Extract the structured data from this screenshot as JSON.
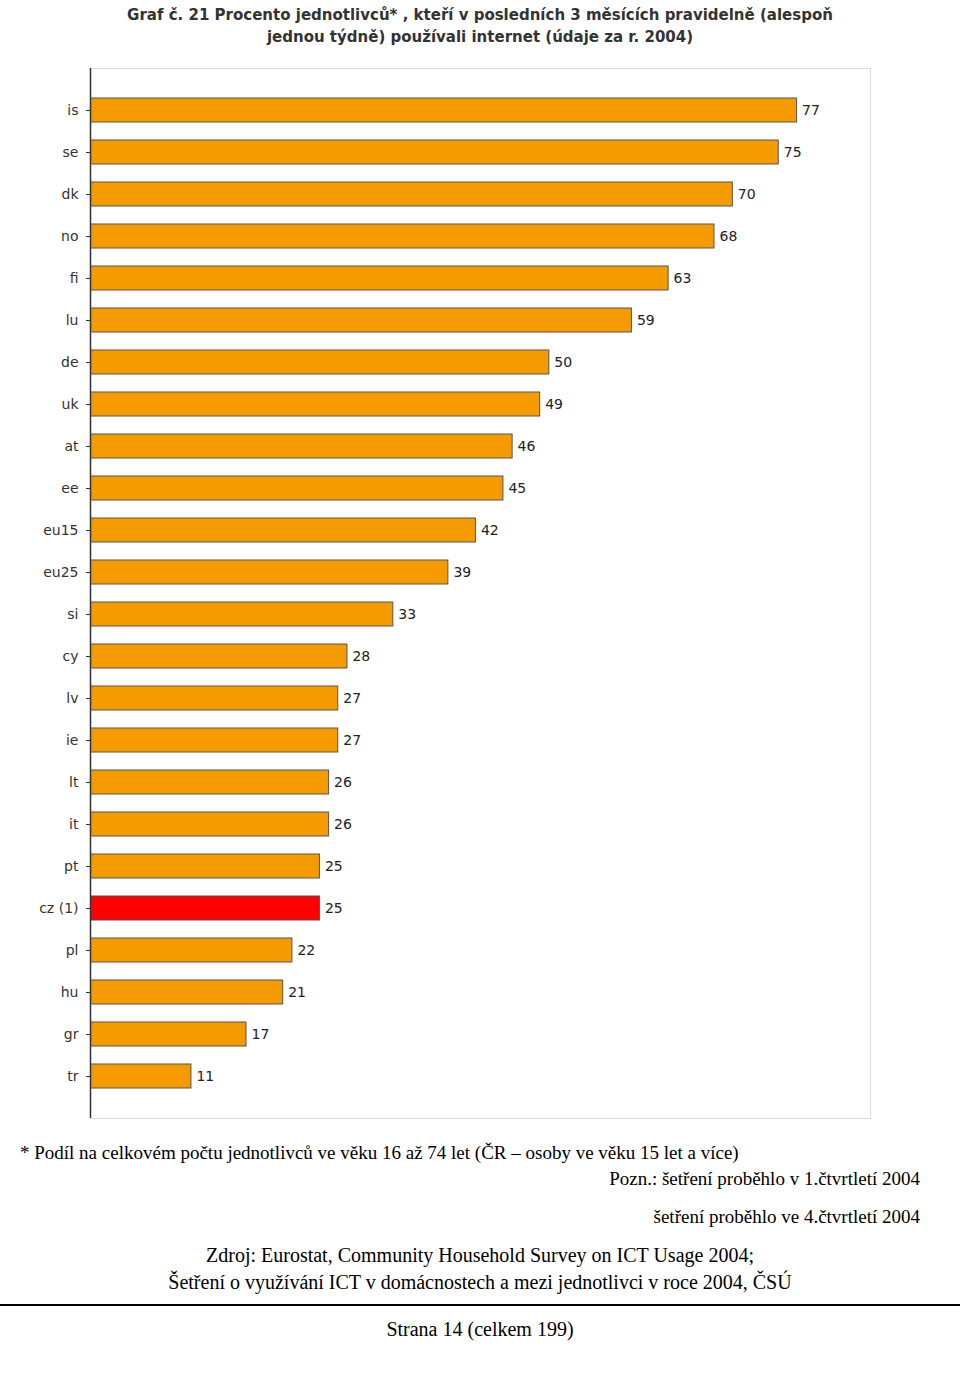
{
  "chart_data": {
    "type": "bar",
    "orientation": "horizontal",
    "title": "Graf č. 21 Procento jednotlivců* , kteří v posledních 3 měsících pravidelně (alespoň jednou týdně) používali internet (údaje za r. 2004)",
    "categories": [
      "is",
      "se",
      "dk",
      "no",
      "fi",
      "lu",
      "de",
      "uk",
      "at",
      "ee",
      "eu15",
      "eu25",
      "si",
      "cy",
      "lv",
      "ie",
      "lt",
      "it",
      "pt",
      "cz (1)",
      "pl",
      "hu",
      "gr",
      "tr"
    ],
    "values": [
      77,
      75,
      70,
      68,
      63,
      59,
      50,
      49,
      46,
      45,
      42,
      39,
      33,
      28,
      27,
      27,
      26,
      26,
      25,
      25,
      22,
      21,
      17,
      11
    ],
    "colors": [
      "#f59b00",
      "#f59b00",
      "#f59b00",
      "#f59b00",
      "#f59b00",
      "#f59b00",
      "#f59b00",
      "#f59b00",
      "#f59b00",
      "#f59b00",
      "#f59b00",
      "#f59b00",
      "#f59b00",
      "#f59b00",
      "#f59b00",
      "#f59b00",
      "#f59b00",
      "#f59b00",
      "#f59b00",
      "#ff0000",
      "#f59b00",
      "#f59b00",
      "#f59b00",
      "#f59b00"
    ],
    "xlim": [
      0,
      85
    ],
    "xticks": [],
    "data_labels": true,
    "tick_labels": "y",
    "grid": false,
    "notes": [
      "* Podíl na celkovém počtu jednotlivců ve věku 16 až 74 let (ČR – osoby ve věku 15 let a více)",
      "Pozn.: šetření proběhlo v 1.čtvrtletí 2004",
      "šetření proběhlo ve 4.čtvrtletí 2004"
    ],
    "source": [
      "Zdroj: Eurostat, Community Household Survey on ICT Usage 2004;",
      "Šetření o využívání ICT v domácnostech a mezi jednotlivci v roce 2004, ČSÚ"
    ],
    "page": "Strana 14 (celkem 199)"
  }
}
